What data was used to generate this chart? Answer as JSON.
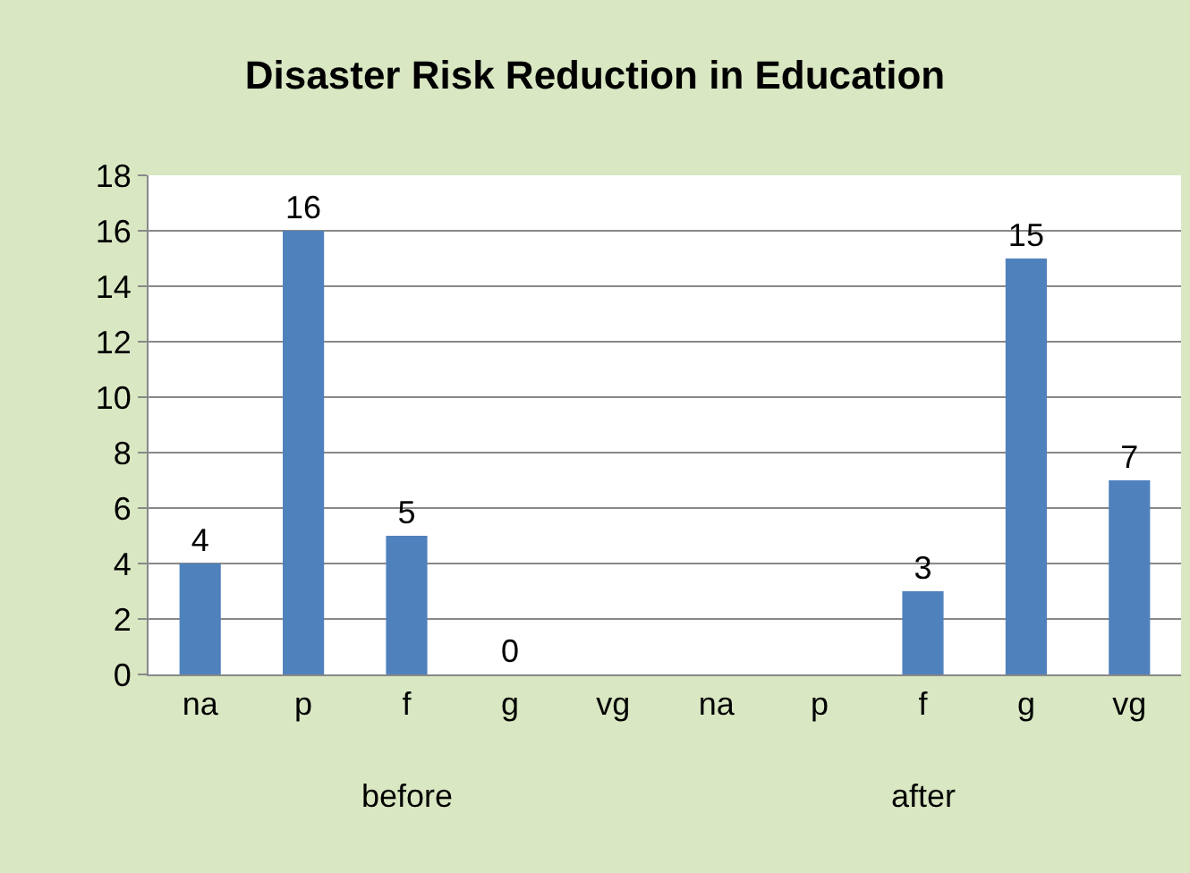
{
  "chart_data": {
    "type": "bar",
    "title": "Disaster Risk Reduction in Education",
    "categories": [
      "na",
      "p",
      "f",
      "g",
      "vg",
      "na",
      "p",
      "f",
      "g",
      "vg"
    ],
    "values": [
      4,
      16,
      5,
      0,
      null,
      null,
      null,
      3,
      15,
      7
    ],
    "color": "#4f81bd",
    "ylim": [
      0,
      18
    ],
    "yticks": [
      0,
      2,
      4,
      6,
      8,
      10,
      12,
      14,
      16,
      18
    ],
    "grid": "y",
    "data_labels": true,
    "annotations": [
      "before",
      "after"
    ]
  }
}
